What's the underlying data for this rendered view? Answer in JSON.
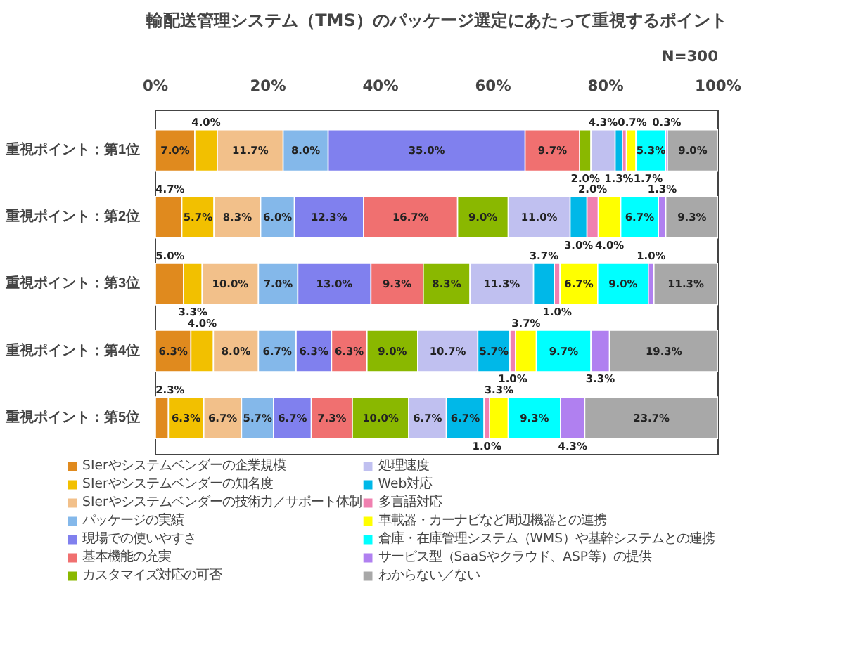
{
  "chart_data": {
    "type": "bar",
    "orientation": "horizontal",
    "stacked": true,
    "title": "輸配送管理システム（TMS）のパッケージ選定にあたって重視するポイント",
    "annotations": [
      "N=300"
    ],
    "categories": [
      "重視ポイント：第1位",
      "重視ポイント：第2位",
      "重視ポイント：第3位",
      "重視ポイント：第4位",
      "重視ポイント：第5位"
    ],
    "xlim": [
      0,
      100
    ],
    "xticks": [
      {
        "value": 0,
        "label": "0%"
      },
      {
        "value": 20,
        "label": "20%"
      },
      {
        "value": 40,
        "label": "40%"
      },
      {
        "value": 60,
        "label": "60%"
      },
      {
        "value": 80,
        "label": "80%"
      },
      {
        "value": 100,
        "label": "100%"
      }
    ],
    "grid": false,
    "legend": "bottom",
    "series": [
      {
        "name": "SIerやシステムベンダーの企業規模",
        "color": "#e08a1e",
        "values": [
          7.0,
          4.7,
          5.0,
          6.3,
          2.3
        ],
        "value_labels": [
          "7.0%",
          "4.7%",
          "5.0%",
          "6.3%",
          "2.3%"
        ]
      },
      {
        "name": "SIerやシステムベンダーの知名度",
        "color": "#f2c000",
        "values": [
          4.0,
          5.7,
          3.3,
          4.0,
          6.3
        ],
        "value_labels": [
          "4.0%",
          "5.7%",
          "3.3%",
          "4.0%",
          "6.3%"
        ]
      },
      {
        "name": "SIerやシステムベンダーの技術力／サポート体制",
        "color": "#f2c08a",
        "values": [
          11.7,
          8.3,
          10.0,
          8.0,
          6.7
        ],
        "value_labels": [
          "11.7%",
          "8.3%",
          "10.0%",
          "8.0%",
          "6.7%"
        ]
      },
      {
        "name": "パッケージの実績",
        "color": "#84b8ea",
        "values": [
          8.0,
          6.0,
          7.0,
          6.7,
          5.7
        ],
        "value_labels": [
          "8.0%",
          "6.0%",
          "7.0%",
          "6.7%",
          "5.7%"
        ]
      },
      {
        "name": "現場での使いやすさ",
        "color": "#8080ee",
        "values": [
          35.0,
          12.3,
          13.0,
          6.3,
          6.7
        ],
        "value_labels": [
          "35.0%",
          "12.3%",
          "13.0%",
          "6.3%",
          "6.7%"
        ]
      },
      {
        "name": "基本機能の充実",
        "color": "#f07070",
        "values": [
          9.7,
          16.7,
          9.3,
          6.3,
          7.3
        ],
        "value_labels": [
          "9.7%",
          "16.7%",
          "9.3%",
          "6.3%",
          "7.3%"
        ]
      },
      {
        "name": "カスタマイズ対応の可否",
        "color": "#8ab800",
        "values": [
          2.0,
          9.0,
          8.3,
          9.0,
          10.0
        ],
        "value_labels": [
          "2.0%",
          "9.0%",
          "8.3%",
          "9.0%",
          "10.0%"
        ]
      },
      {
        "name": "処理速度",
        "color": "#c0c0f0",
        "values": [
          4.3,
          11.0,
          11.3,
          10.7,
          6.7
        ],
        "value_labels": [
          "4.3%",
          "11.0%",
          "11.3%",
          "10.7%",
          "6.7%"
        ]
      },
      {
        "name": "Web対応",
        "color": "#00b8e8",
        "values": [
          1.3,
          3.0,
          3.7,
          5.7,
          6.7
        ],
        "value_labels": [
          "1.3%",
          "3.0%",
          "3.7%",
          "5.7%",
          "6.7%"
        ]
      },
      {
        "name": "多言語対応",
        "color": "#f080b0",
        "values": [
          0.7,
          2.0,
          1.0,
          1.0,
          1.0
        ],
        "value_labels": [
          "0.7%",
          "2.0%",
          "1.0%",
          "1.0%",
          "1.0%"
        ]
      },
      {
        "name": "車載器・カーナビなど周辺機器との連携",
        "color": "#ffff00",
        "values": [
          1.7,
          4.0,
          6.7,
          3.7,
          3.3
        ],
        "value_labels": [
          "1.7%",
          "4.0%",
          "6.7%",
          "3.7%",
          "3.3%"
        ]
      },
      {
        "name": "倉庫・在庫管理システム（WMS）や基幹システムとの連携",
        "color": "#00ffff",
        "values": [
          5.3,
          6.7,
          9.0,
          9.7,
          9.3
        ],
        "value_labels": [
          "5.3%",
          "6.7%",
          "9.0%",
          "9.7%",
          "9.3%"
        ]
      },
      {
        "name": "サービス型（SaaSやクラウド、ASP等）の提供",
        "color": "#b080f0",
        "values": [
          0.3,
          1.3,
          1.0,
          3.3,
          4.3
        ],
        "value_labels": [
          "0.3%",
          "1.3%",
          "1.0%",
          "3.3%",
          "4.3%"
        ]
      },
      {
        "name": "わからない／ない",
        "color": "#a8a8a8",
        "values": [
          9.0,
          9.3,
          11.3,
          19.3,
          23.7
        ],
        "value_labels": [
          "9.0%",
          "9.3%",
          "11.3%",
          "19.3%",
          "23.7%"
        ]
      }
    ]
  }
}
